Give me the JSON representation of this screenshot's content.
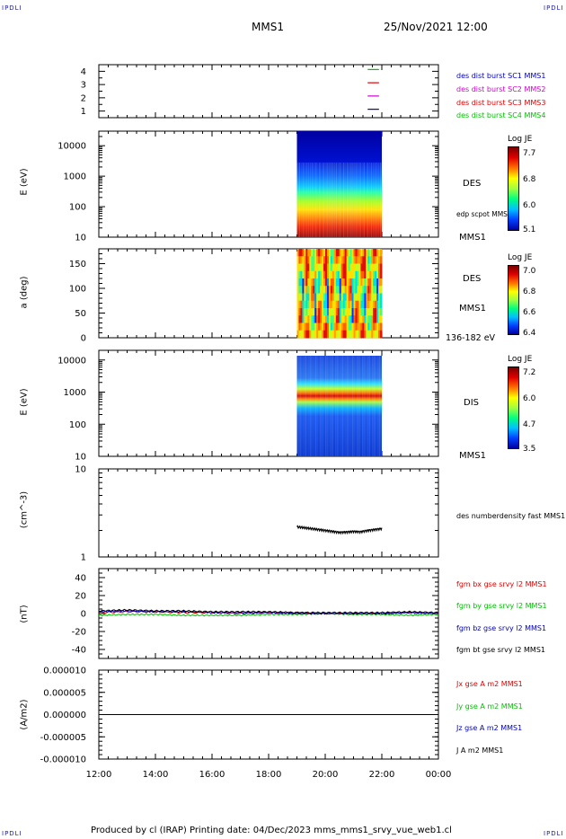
{
  "header": {
    "corner_tl": "IPDLI",
    "corner_tr": "IPDLI",
    "corner_bl": "IPDLI",
    "corner_br": "IPDLI",
    "spacecraft": "MMS1",
    "datetime": "25/Nov/2021 12:00"
  },
  "footer": {
    "text": "Produced by cl (IRAP)   Printing date: 04/Dec/2023   mms_mms1_srvy_vue_web1.cl"
  },
  "colors": {
    "green": "#00c000",
    "magenta": "#d000d0",
    "red": "#e00000",
    "blue": "#0000c0",
    "black": "#000000"
  },
  "chart_data": [
    {
      "type": "line",
      "panel": "availability",
      "yticks": [
        "1",
        "2",
        "3",
        "4"
      ],
      "ylim": [
        0.5,
        4.5
      ],
      "legend": [
        {
          "label": "des dist burst SC1 MMS1",
          "color": "#0000c0",
          "y": 1
        },
        {
          "label": "des dist burst SC2 MMS2",
          "color": "#d000d0",
          "y": 2
        },
        {
          "label": "des dist burst SC3 MMS3",
          "color": "#e00000",
          "y": 3
        },
        {
          "label": "des dist burst SC4 MMS4",
          "color": "#00c000",
          "y": 4
        }
      ],
      "x_start_hours": 21.5,
      "x_end_hours": 21.9
    },
    {
      "type": "heatmap",
      "panel": "des-energy",
      "ylabel": "E (eV)",
      "ylog": true,
      "ylim": [
        10,
        30000
      ],
      "yticks": [
        "10",
        "100",
        "1000",
        "10000"
      ],
      "right_labels": [
        "DES",
        "edp scpot MMS1",
        "MMS1"
      ],
      "colorbar": {
        "title": "Log JE",
        "ticks": [
          "7.7",
          "6.8",
          "6.0",
          "5.1"
        ],
        "min": 5.1,
        "max": 7.7
      },
      "x_range_hours": [
        19.0,
        22.0
      ]
    },
    {
      "type": "heatmap",
      "panel": "des-pitch",
      "ylabel": "a (deg)",
      "ylim": [
        0,
        180
      ],
      "yticks": [
        "0",
        "50",
        "100",
        "150"
      ],
      "right_labels": [
        "DES",
        "MMS1",
        "136-182 eV"
      ],
      "colorbar": {
        "title": "Log JE",
        "ticks": [
          "7.0",
          "6.8",
          "6.6",
          "6.4"
        ],
        "min": 6.4,
        "max": 7.0
      },
      "x_range_hours": [
        19.0,
        22.0
      ]
    },
    {
      "type": "heatmap",
      "panel": "dis-energy",
      "ylabel": "E (eV)",
      "ylog": true,
      "ylim": [
        10,
        20000
      ],
      "yticks": [
        "10",
        "100",
        "1000",
        "10000"
      ],
      "right_labels": [
        "DIS",
        "MMS1"
      ],
      "colorbar": {
        "title": "Log JE",
        "ticks": [
          "7.2",
          "6.0",
          "4.7",
          "3.5"
        ],
        "min": 3.5,
        "max": 7.2
      },
      "x_range_hours": [
        19.0,
        22.0
      ]
    },
    {
      "type": "line",
      "panel": "density",
      "ylabel": "(cm^-3)",
      "ylog": true,
      "ylim": [
        1,
        10
      ],
      "yticks": [
        "1",
        "10"
      ],
      "series": [
        {
          "name": "des numberdensity fast MMS1",
          "color": "#000000",
          "x": [
            19.0,
            19.25,
            19.5,
            19.75,
            20.0,
            20.25,
            20.5,
            20.75,
            21.0,
            21.25,
            21.5,
            21.75,
            22.0
          ],
          "values": [
            2.2,
            2.15,
            2.1,
            2.05,
            2.0,
            1.95,
            1.9,
            1.92,
            1.95,
            1.93,
            2.0,
            2.05,
            2.1
          ]
        }
      ]
    },
    {
      "type": "line",
      "panel": "magnetic-field",
      "ylabel": "(nT)",
      "ylim": [
        -50,
        50
      ],
      "yticks": [
        "-40",
        "-20",
        "0",
        "20",
        "40"
      ],
      "series": [
        {
          "name": "fgm bx gse srvy l2 MMS1",
          "color": "#e00000",
          "x": [
            12,
            13,
            14,
            15,
            16,
            17,
            18,
            19,
            20,
            21,
            22,
            23,
            24
          ],
          "values": [
            1,
            2,
            2,
            1,
            1,
            0,
            1,
            1,
            0,
            0,
            0,
            1,
            0
          ]
        },
        {
          "name": "fgm by gse srvy l2 MMS1",
          "color": "#00c000",
          "x": [
            12,
            13,
            14,
            15,
            16,
            17,
            18,
            19,
            20,
            21,
            22,
            23,
            24
          ],
          "values": [
            -2,
            -1,
            -1,
            -2,
            -2,
            -2,
            -1,
            -1,
            0,
            -1,
            -1,
            -2,
            -1
          ]
        },
        {
          "name": "fgm bz gse srvy l2 MMS1",
          "color": "#0000c0",
          "x": [
            12,
            13,
            14,
            15,
            16,
            17,
            18,
            19,
            20,
            21,
            22,
            23,
            24
          ],
          "values": [
            2,
            3,
            2,
            2,
            1,
            1,
            1,
            0,
            0,
            0,
            0,
            1,
            0
          ]
        },
        {
          "name": "fgm bt gse srvy l2 MMS1",
          "color": "#000000",
          "x": [
            12,
            13,
            14,
            15,
            16,
            17,
            18,
            19,
            20,
            21,
            22,
            23,
            24
          ],
          "values": [
            3,
            4,
            3,
            3,
            2,
            2,
            2,
            1,
            1,
            1,
            1,
            2,
            1
          ]
        }
      ]
    },
    {
      "type": "line",
      "panel": "current-density",
      "ylabel": "(A/m2)",
      "ylim": [
        -1e-05,
        1e-05
      ],
      "yticks": [
        "-0.000010",
        "-0.000005",
        "0.000000",
        "0.000005",
        "0.000010"
      ],
      "xticks": [
        "12:00",
        "14:00",
        "16:00",
        "18:00",
        "20:00",
        "22:00",
        "00:00"
      ],
      "series": [
        {
          "name": "Jx gse A m2 MMS1",
          "color": "#e00000",
          "x": [
            12,
            24
          ],
          "values": [
            0,
            0
          ]
        },
        {
          "name": "Jy gse A m2 MMS1",
          "color": "#00c000",
          "x": [
            12,
            24
          ],
          "values": [
            0,
            0
          ]
        },
        {
          "name": "Jz gse A m2 MMS1",
          "color": "#0000c0",
          "x": [
            12,
            24
          ],
          "values": [
            0,
            0
          ]
        },
        {
          "name": "J A m2 MMS1",
          "color": "#000000",
          "x": [
            12,
            24
          ],
          "values": [
            0,
            0
          ]
        }
      ]
    }
  ]
}
